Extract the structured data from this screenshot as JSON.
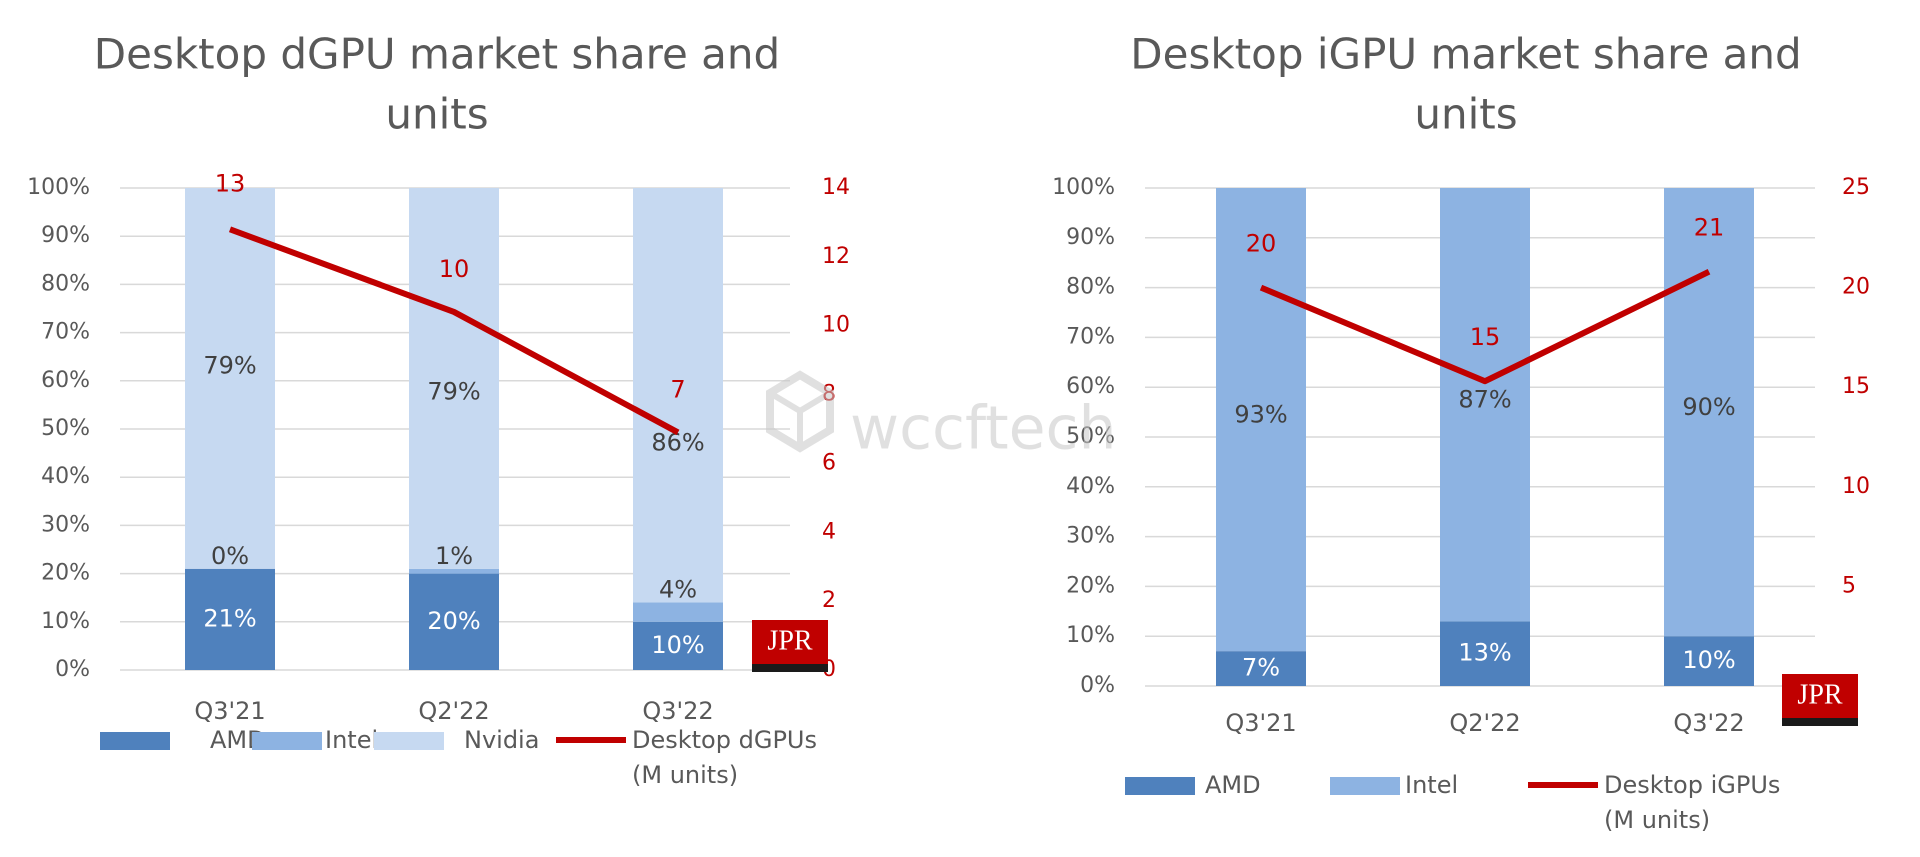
{
  "colors": {
    "amd": "#4f81bd",
    "intel": "#8db3e2",
    "nvidia": "#c6d9f1",
    "line": "#c00000"
  },
  "watermark": "wccftech",
  "logo": "JPR",
  "chart_data": [
    {
      "type": "bar",
      "stacked": true,
      "title": "Desktop dGPU market share and units",
      "title_lines": [
        "Desktop dGPU market share and",
        "units"
      ],
      "categories": [
        "Q3'21",
        "Q2'22",
        "Q3'22"
      ],
      "ylim": [
        0,
        100
      ],
      "yticks": [
        "0%",
        "10%",
        "20%",
        "30%",
        "40%",
        "50%",
        "60%",
        "70%",
        "80%",
        "90%",
        "100%"
      ],
      "y2lim": [
        0,
        14
      ],
      "y2ticks": [
        "0",
        "2",
        "4",
        "6",
        "8",
        "10",
        "12",
        "14"
      ],
      "series": [
        {
          "name": "AMD",
          "key": "amd",
          "values": [
            21,
            20,
            10
          ],
          "labels": [
            "21%",
            "20%",
            "10%"
          ]
        },
        {
          "name": "Intel",
          "key": "intel",
          "values": [
            0,
            1,
            4
          ],
          "labels": [
            "0%",
            "1%",
            "4%"
          ]
        },
        {
          "name": "Nvidia",
          "key": "nvidia",
          "values": [
            79,
            79,
            86
          ],
          "labels": [
            "79%",
            "79%",
            "86%"
          ]
        }
      ],
      "line_series": {
        "name": "Desktop dGPUs (M units)",
        "name_lines": [
          "Desktop dGPUs",
          "(M units)"
        ],
        "values": [
          12.8,
          10.4,
          6.9
        ],
        "labels": [
          "13",
          "10",
          "7"
        ]
      },
      "legend": "bottom",
      "grid": true
    },
    {
      "type": "bar",
      "stacked": true,
      "title": "Desktop iGPU market share and units",
      "title_lines": [
        "Desktop iGPU market share and",
        "units"
      ],
      "categories": [
        "Q3'21",
        "Q2'22",
        "Q3'22"
      ],
      "ylim": [
        0,
        100
      ],
      "yticks": [
        "0%",
        "10%",
        "20%",
        "30%",
        "40%",
        "50%",
        "60%",
        "70%",
        "80%",
        "90%",
        "100%"
      ],
      "y2lim": [
        0,
        25
      ],
      "y2ticks": [
        "5",
        "10",
        "15",
        "20",
        "25"
      ],
      "series": [
        {
          "name": "AMD",
          "key": "amd",
          "values": [
            7,
            13,
            10
          ],
          "labels": [
            "7%",
            "13%",
            "10%"
          ]
        },
        {
          "name": "Intel",
          "key": "intel",
          "values": [
            93,
            87,
            90
          ],
          "labels": [
            "93%",
            "87%",
            "90%"
          ]
        }
      ],
      "line_series": {
        "name": "Desktop iGPUs (M units)",
        "name_lines": [
          "Desktop iGPUs",
          "(M units)"
        ],
        "values": [
          20,
          15.3,
          20.8
        ],
        "labels": [
          "20",
          "15",
          "21"
        ]
      },
      "legend": "bottom",
      "grid": true
    }
  ]
}
